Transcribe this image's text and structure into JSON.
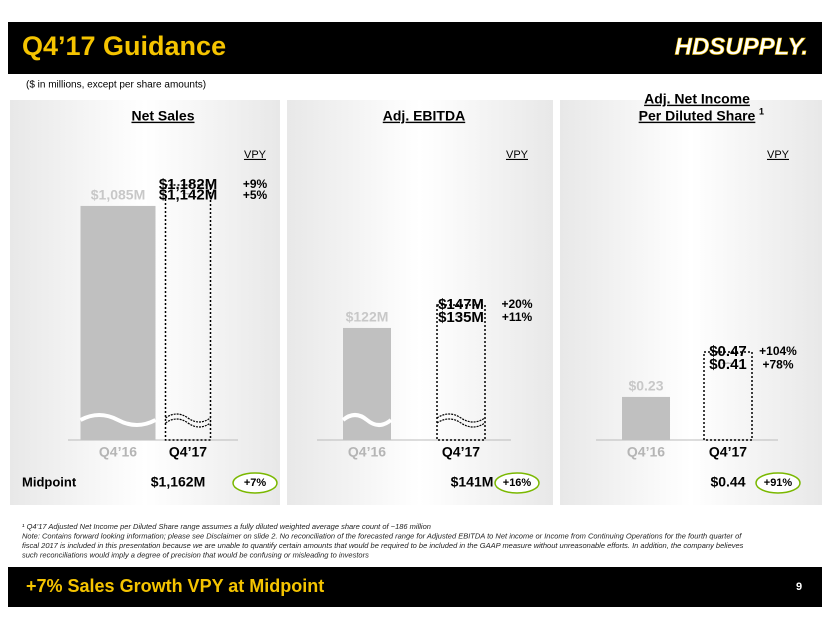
{
  "header": {
    "title": "Q4’17 Guidance",
    "logo": "HDSUPPLY.",
    "subtitle": "($ in millions, except per share amounts)"
  },
  "midpoint_label": "Midpoint",
  "chart_data": [
    {
      "type": "bar",
      "title": [
        "Net Sales"
      ],
      "categories": [
        "Q4’16",
        "Q4’17"
      ],
      "values": [
        1085,
        1182
      ],
      "value_labels": [
        "$1,085M",
        "$1,182M"
      ],
      "low": 1142,
      "low_label": "$1,142M",
      "vpy_header": "VPY",
      "vpy": [
        "+9%",
        "+5%"
      ],
      "midpoint": 1162,
      "midpoint_label": "$1,162M",
      "midpoint_vpy": "+7%",
      "color": "#c0c0c0",
      "axis_break": true
    },
    {
      "type": "bar",
      "title": [
        "Adj. EBITDA"
      ],
      "categories": [
        "Q4’16",
        "Q4’17"
      ],
      "values": [
        122,
        147
      ],
      "value_labels": [
        "$122M",
        "$147M"
      ],
      "low": 135,
      "low_label": "$135M",
      "vpy_header": "VPY",
      "vpy": [
        "+20%",
        "+11%"
      ],
      "midpoint": 141,
      "midpoint_label": "$141M",
      "midpoint_vpy": "+16%",
      "color": "#c0c0c0",
      "axis_break": true
    },
    {
      "type": "bar",
      "title": [
        "Adj. Net Income",
        "Per Diluted Share"
      ],
      "title_note": "1",
      "categories": [
        "Q4’16",
        "Q4’17"
      ],
      "values": [
        0.23,
        0.47
      ],
      "value_labels": [
        "$0.23",
        "$0.47"
      ],
      "low": 0.41,
      "low_label": "$0.41",
      "vpy_header": "VPY",
      "vpy": [
        "+104%",
        "+78%"
      ],
      "midpoint": 0.44,
      "midpoint_label": "$0.44",
      "midpoint_vpy": "+91%",
      "color": "#c0c0c0",
      "axis_break": false
    }
  ],
  "footnotes": [
    "¹ Q4’17 Adjusted Net Income per Diluted Share range assumes a fully diluted weighted average share count of ~186 million",
    "Note: Contains forward looking information; please see Disclaimer on slide 2. No reconciliation of the forecasted range for Adjusted EBITDA to Net income or Income from Continuing Operations for the fourth quarter of",
    "fiscal 2017 is included in this presentation because we are unable to quantify certain amounts that would be required to be included in the GAAP measure without unreasonable efforts. In addition, the company believes",
    "such reconciliations would imply a degree of precision that would be confusing or misleading to investors"
  ],
  "footer": {
    "text": "+7% Sales Growth VPY at Midpoint",
    "page": "9"
  }
}
